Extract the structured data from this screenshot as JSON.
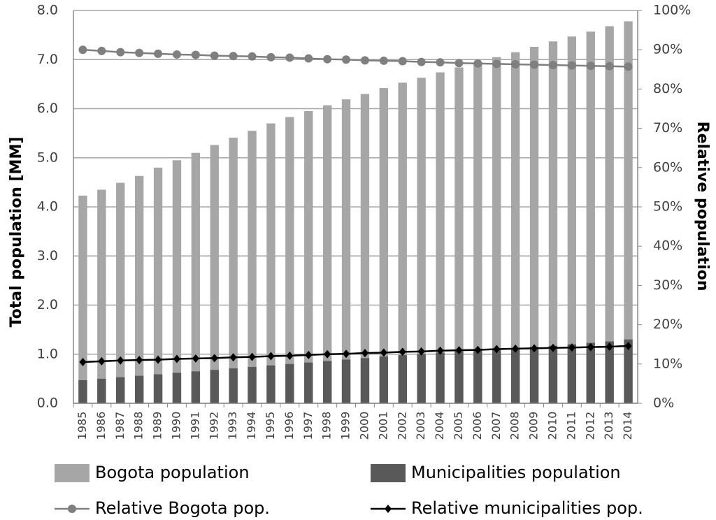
{
  "chart_data": {
    "type": "bar",
    "y_label": "Total population [MM]",
    "y2_label": "Relative population",
    "categories": [
      "1985",
      "1986",
      "1987",
      "1988",
      "1989",
      "1990",
      "1991",
      "1992",
      "1993",
      "1994",
      "1995",
      "1996",
      "1997",
      "1998",
      "1999",
      "2000",
      "2001",
      "2002",
      "2003",
      "2004",
      "2005",
      "2006",
      "2007",
      "2008",
      "2009",
      "2010",
      "2011",
      "2012",
      "2013",
      "2014"
    ],
    "series": [
      {
        "name": "Bogota population",
        "type": "bar",
        "color": "#a6a6a6",
        "values": [
          4.23,
          4.35,
          4.49,
          4.63,
          4.8,
          4.95,
          5.1,
          5.26,
          5.41,
          5.55,
          5.7,
          5.83,
          5.95,
          6.07,
          6.19,
          6.3,
          6.42,
          6.53,
          6.63,
          6.74,
          6.84,
          6.95,
          7.05,
          7.15,
          7.26,
          7.37,
          7.47,
          7.57,
          7.68,
          7.78
        ]
      },
      {
        "name": "Municipalities population",
        "type": "bar",
        "color": "#595959",
        "values": [
          0.47,
          0.5,
          0.53,
          0.56,
          0.59,
          0.62,
          0.65,
          0.68,
          0.71,
          0.74,
          0.77,
          0.8,
          0.83,
          0.86,
          0.89,
          0.92,
          0.95,
          0.98,
          1.0,
          1.03,
          1.06,
          1.08,
          1.1,
          1.12,
          1.15,
          1.17,
          1.2,
          1.23,
          1.26,
          1.3
        ]
      },
      {
        "name": "Relative Bogota pop.",
        "type": "line",
        "marker": "circle",
        "axis": "y2",
        "color": "#7f7f7f",
        "values": [
          90.0,
          89.7,
          89.4,
          89.2,
          89.0,
          88.8,
          88.7,
          88.5,
          88.4,
          88.3,
          88.1,
          88.0,
          87.8,
          87.6,
          87.5,
          87.3,
          87.2,
          87.1,
          86.9,
          86.8,
          86.6,
          86.5,
          86.4,
          86.3,
          86.2,
          86.1,
          86.0,
          85.9,
          85.8,
          85.7
        ]
      },
      {
        "name": "Relative municipalities pop.",
        "type": "line",
        "marker": "diamond",
        "axis": "y2",
        "color": "#000000",
        "values": [
          10.5,
          10.7,
          10.9,
          11.0,
          11.1,
          11.3,
          11.4,
          11.5,
          11.7,
          11.8,
          12.0,
          12.1,
          12.3,
          12.5,
          12.6,
          12.8,
          12.9,
          13.1,
          13.2,
          13.4,
          13.5,
          13.6,
          13.8,
          13.9,
          14.0,
          14.1,
          14.2,
          14.3,
          14.4,
          14.6
        ]
      }
    ],
    "ylim": [
      0,
      8
    ],
    "yticks": [
      {
        "value": 0,
        "label": "0.0"
      },
      {
        "value": 1,
        "label": "1.0"
      },
      {
        "value": 2,
        "label": "2.0"
      },
      {
        "value": 3,
        "label": "3.0"
      },
      {
        "value": 4,
        "label": "4.0"
      },
      {
        "value": 5,
        "label": "5.0"
      },
      {
        "value": 6,
        "label": "6.0"
      },
      {
        "value": 7,
        "label": "7.0"
      },
      {
        "value": 8,
        "label": "8.0"
      }
    ],
    "y2lim": [
      0,
      100
    ],
    "y2ticks": [
      {
        "value": 0,
        "label": "0%"
      },
      {
        "value": 10,
        "label": "10%"
      },
      {
        "value": 20,
        "label": "20%"
      },
      {
        "value": 30,
        "label": "30%"
      },
      {
        "value": 40,
        "label": "40%"
      },
      {
        "value": 50,
        "label": "50%"
      },
      {
        "value": 60,
        "label": "60%"
      },
      {
        "value": 70,
        "label": "70%"
      },
      {
        "value": 80,
        "label": "80%"
      },
      {
        "value": 90,
        "label": "90%"
      },
      {
        "value": 100,
        "label": "100%"
      }
    ],
    "grid": true,
    "legend": "bottom"
  }
}
